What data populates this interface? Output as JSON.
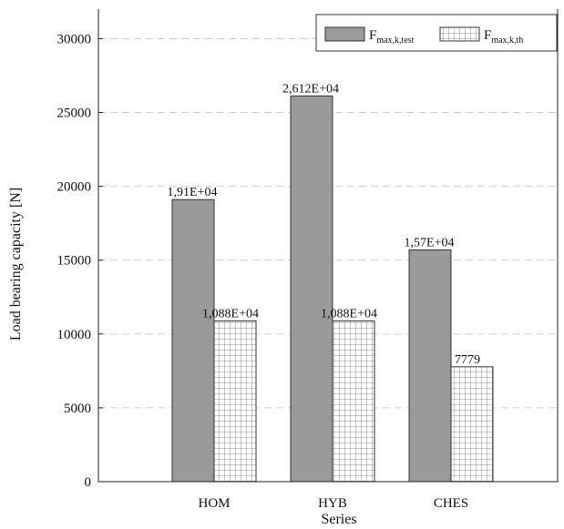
{
  "chart_data": {
    "type": "bar",
    "categories": [
      "HOM",
      "HYB",
      "CHES"
    ],
    "series": [
      {
        "name_main": "F",
        "name_sub": "max,k,test",
        "values": [
          19100,
          26120,
          15700
        ],
        "labels": [
          "1,91E+04",
          "2,612E+04",
          "1,57E+04"
        ],
        "fill": "#9a9a9a",
        "pattern": "solid"
      },
      {
        "name_main": "F",
        "name_sub": "max,k,th",
        "values": [
          10880,
          10880,
          7779
        ],
        "labels": [
          "1,088E+04",
          "1,088E+04",
          "7779"
        ],
        "fill": "#ffffff",
        "pattern": "grid-hatch"
      }
    ],
    "xlabel": "Series",
    "ylabel": "Load bearing capacity [N]",
    "ylim": [
      0,
      32000
    ],
    "yticks": [
      0,
      5000,
      10000,
      15000,
      20000,
      25000,
      30000
    ],
    "grid": "horizontal-dashed",
    "legend_position": "top-right"
  }
}
